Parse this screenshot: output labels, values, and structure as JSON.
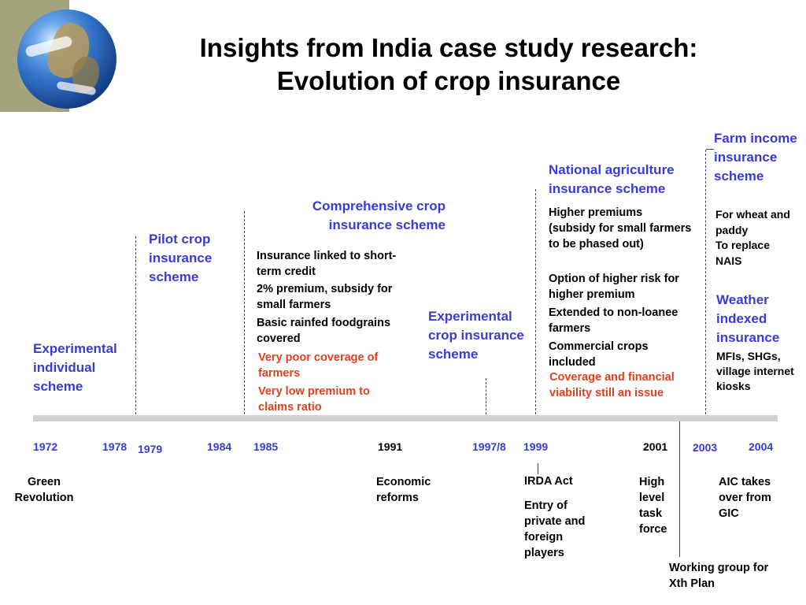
{
  "title": {
    "line1": "Insights from India case study research:",
    "line2": "Evolution of crop insurance"
  },
  "logo_icon": "globe-icon",
  "schemes": {
    "experimental_individual": {
      "title": "Experimental individual scheme"
    },
    "pilot": {
      "title": "Pilot crop insurance scheme"
    },
    "comprehensive": {
      "title_line1": "Comprehensive crop",
      "title_line2": "insurance scheme",
      "features": [
        "Insurance linked to short-term credit",
        "2% premium, subsidy for small farmers",
        "Basic rainfed foodgrains covered"
      ],
      "issues": [
        "Very poor coverage of farmers",
        "Very low premium to claims ratio"
      ]
    },
    "experimental_crop": {
      "title": "Experimental crop insurance scheme"
    },
    "national_agriculture": {
      "title": "National agriculture insurance scheme",
      "features": [
        "Higher premiums (subsidy for small farmers to be phased out)",
        "Option of higher risk for higher premium",
        "Extended to non-loanee farmers",
        "Commercial crops included"
      ],
      "issue": "Coverage and financial viability still an issue"
    },
    "farm_income": {
      "title": "Farm income insurance scheme",
      "details": [
        "For wheat and paddy",
        "To replace NAIS"
      ]
    },
    "weather_indexed": {
      "title": "Weather indexed insurance",
      "details": "MFIs, SHGs, village internet kiosks"
    }
  },
  "years": [
    "1972",
    "1978",
    "1979",
    "1984",
    "1985",
    "1991",
    "1997/8",
    "1999",
    "2001",
    "2003",
    "2004"
  ],
  "events": {
    "green_revolution": "Green Revolution",
    "economic_reforms": "Economic reforms",
    "irda_act": "IRDA Act",
    "private_entry": "Entry of private and foreign players",
    "high_level_task_force": "High level task force",
    "working_group": "Working group for Xth Plan",
    "aic": "AIC takes over from GIC"
  },
  "colors": {
    "scheme_title": "#3a3ad6",
    "issue_text": "#e0401c",
    "timeline_bar": "#d2d2d2",
    "header_band": "#a3a47d"
  }
}
